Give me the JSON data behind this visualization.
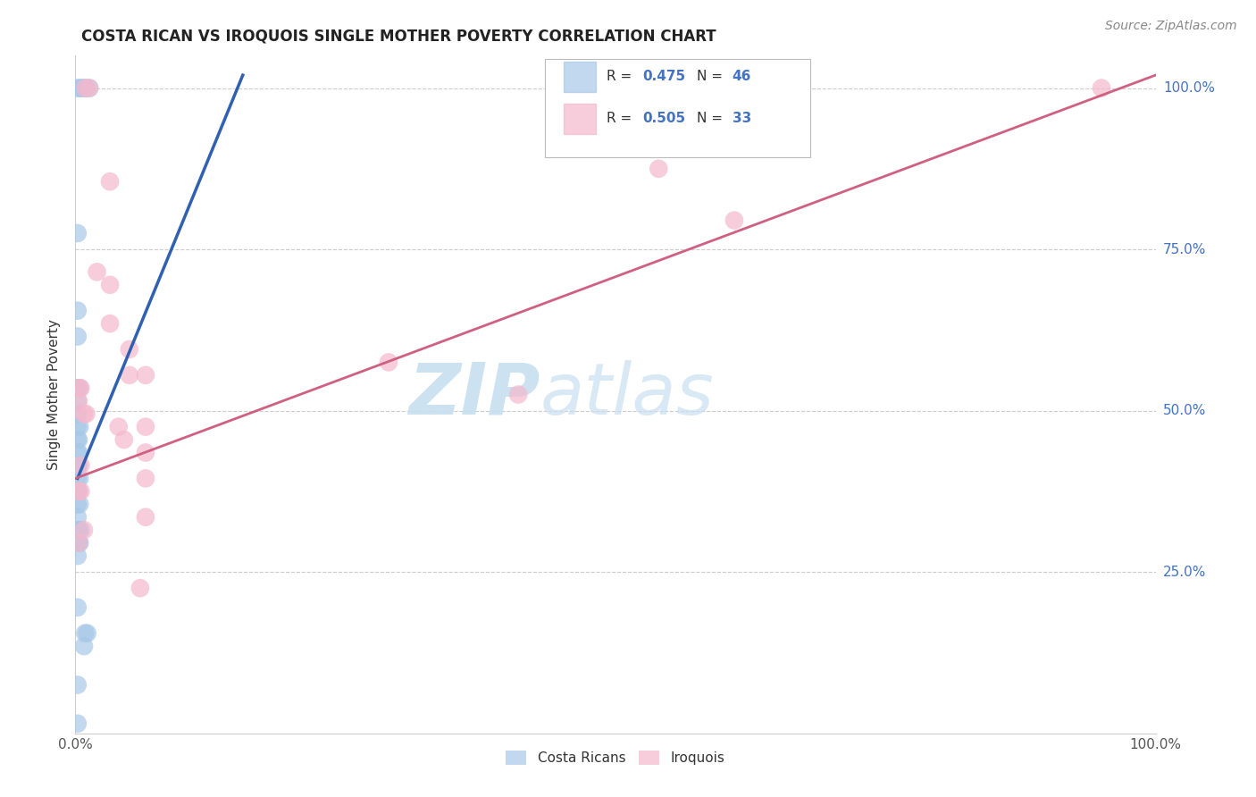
{
  "title": "COSTA RICAN VS IROQUOIS SINGLE MOTHER POVERTY CORRELATION CHART",
  "source": "Source: ZipAtlas.com",
  "ylabel": "Single Mother Poverty",
  "legend_blue_r": "0.475",
  "legend_blue_n": "46",
  "legend_pink_r": "0.505",
  "legend_pink_n": "33",
  "blue_color": "#a8c8e8",
  "pink_color": "#f4b8cc",
  "blue_line_color": "#3060b0",
  "pink_line_color": "#d06080",
  "watermark_zip": "ZIP",
  "watermark_atlas": "atlas",
  "blue_dots": [
    [
      0.002,
      1.0
    ],
    [
      0.004,
      1.0
    ],
    [
      0.006,
      1.0
    ],
    [
      0.008,
      1.0
    ],
    [
      0.01,
      1.0
    ],
    [
      0.013,
      1.0
    ],
    [
      0.002,
      0.775
    ],
    [
      0.002,
      0.655
    ],
    [
      0.002,
      0.615
    ],
    [
      0.002,
      0.535
    ],
    [
      0.004,
      0.535
    ],
    [
      0.002,
      0.515
    ],
    [
      0.002,
      0.495
    ],
    [
      0.002,
      0.475
    ],
    [
      0.004,
      0.475
    ],
    [
      0.002,
      0.455
    ],
    [
      0.003,
      0.455
    ],
    [
      0.002,
      0.435
    ],
    [
      0.003,
      0.435
    ],
    [
      0.002,
      0.415
    ],
    [
      0.003,
      0.415
    ],
    [
      0.002,
      0.395
    ],
    [
      0.004,
      0.395
    ],
    [
      0.002,
      0.375
    ],
    [
      0.003,
      0.375
    ],
    [
      0.002,
      0.355
    ],
    [
      0.004,
      0.355
    ],
    [
      0.002,
      0.335
    ],
    [
      0.002,
      0.315
    ],
    [
      0.003,
      0.315
    ],
    [
      0.005,
      0.315
    ],
    [
      0.002,
      0.295
    ],
    [
      0.003,
      0.295
    ],
    [
      0.004,
      0.295
    ],
    [
      0.002,
      0.275
    ],
    [
      0.002,
      0.195
    ],
    [
      0.009,
      0.155
    ],
    [
      0.011,
      0.155
    ],
    [
      0.008,
      0.135
    ],
    [
      0.002,
      0.075
    ],
    [
      0.002,
      0.015
    ]
  ],
  "pink_dots": [
    [
      0.009,
      1.0
    ],
    [
      0.013,
      1.0
    ],
    [
      0.032,
      0.855
    ],
    [
      0.02,
      0.715
    ],
    [
      0.032,
      0.695
    ],
    [
      0.032,
      0.635
    ],
    [
      0.05,
      0.595
    ],
    [
      0.05,
      0.555
    ],
    [
      0.065,
      0.555
    ],
    [
      0.003,
      0.535
    ],
    [
      0.005,
      0.535
    ],
    [
      0.003,
      0.515
    ],
    [
      0.008,
      0.495
    ],
    [
      0.01,
      0.495
    ],
    [
      0.04,
      0.475
    ],
    [
      0.065,
      0.475
    ],
    [
      0.045,
      0.455
    ],
    [
      0.065,
      0.435
    ],
    [
      0.005,
      0.415
    ],
    [
      0.065,
      0.395
    ],
    [
      0.003,
      0.375
    ],
    [
      0.005,
      0.375
    ],
    [
      0.065,
      0.335
    ],
    [
      0.008,
      0.315
    ],
    [
      0.003,
      0.295
    ],
    [
      0.06,
      0.225
    ],
    [
      0.29,
      0.575
    ],
    [
      0.41,
      0.525
    ],
    [
      0.54,
      0.875
    ],
    [
      0.61,
      0.795
    ],
    [
      0.95,
      1.0
    ]
  ],
  "blue_line_pts": [
    [
      0.002,
      0.395
    ],
    [
      0.155,
      1.02
    ]
  ],
  "pink_line_pts": [
    [
      0.0,
      0.395
    ],
    [
      1.0,
      1.02
    ]
  ],
  "xlim": [
    0.0,
    1.0
  ],
  "ylim": [
    0.0,
    1.05
  ],
  "yticks": [
    0.25,
    0.5,
    0.75,
    1.0
  ],
  "ytick_labels": [
    "25.0%",
    "50.0%",
    "75.0%",
    "100.0%"
  ],
  "background_color": "#ffffff",
  "grid_color": "#cccccc"
}
